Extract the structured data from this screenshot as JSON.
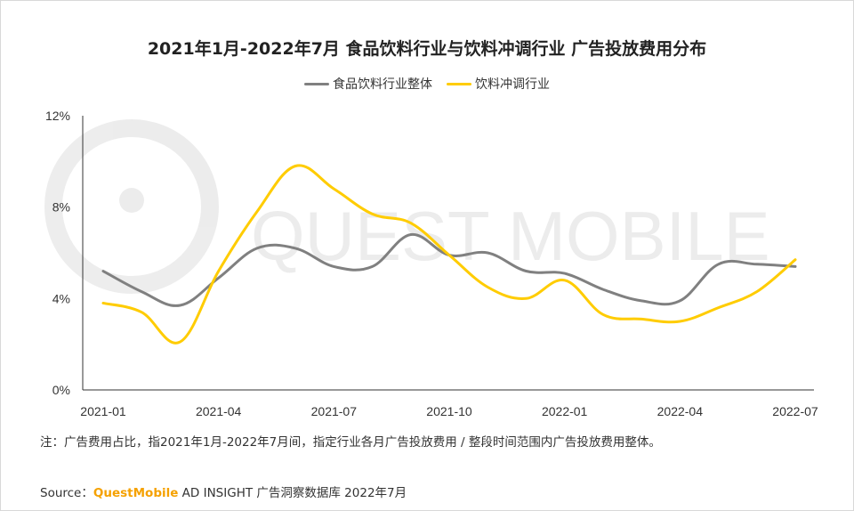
{
  "chart_data": {
    "type": "line",
    "title": "2021年1月-2022年7月 食品饮料行业与饮料冲调行业 广告投放费用分布",
    "xlabel": "",
    "ylabel": "",
    "ylim": [
      0,
      12
    ],
    "y_ticks": [
      "0%",
      "4%",
      "8%",
      "12%"
    ],
    "x_tick_labels": [
      "2021-01",
      "2021-04",
      "2021-07",
      "2021-10",
      "2022-01",
      "2022-04",
      "2022-07"
    ],
    "categories": [
      "2021-01",
      "2021-02",
      "2021-03",
      "2021-04",
      "2021-05",
      "2021-06",
      "2021-07",
      "2021-08",
      "2021-09",
      "2021-10",
      "2021-11",
      "2021-12",
      "2022-01",
      "2022-02",
      "2022-03",
      "2022-04",
      "2022-05",
      "2022-06",
      "2022-07"
    ],
    "series": [
      {
        "name": "食品饮料行业整体",
        "color": "#808080",
        "values": [
          5.2,
          4.3,
          3.7,
          4.9,
          6.2,
          6.2,
          5.4,
          5.4,
          6.8,
          5.9,
          6.0,
          5.2,
          5.1,
          4.4,
          3.9,
          3.9,
          5.5,
          5.5,
          5.4
        ]
      },
      {
        "name": "饮料冲调行业",
        "color": "#ffcc00",
        "values": [
          3.8,
          3.4,
          2.1,
          5.2,
          7.8,
          9.8,
          8.8,
          7.7,
          7.3,
          5.9,
          4.5,
          4.0,
          4.8,
          3.3,
          3.1,
          3.0,
          3.6,
          4.3,
          5.7
        ]
      }
    ]
  },
  "watermark": "QUEST MOBILE",
  "note": "注：广告费用占比，指2021年1月-2022年7月间，指定行业各月广告投放费用 / 整段时间范围内广告投放费用整体。",
  "source": {
    "prefix": "Source：",
    "brand": "QuestMobile",
    "suffix": " AD INSIGHT 广告洞察数据库 2022年7月"
  }
}
